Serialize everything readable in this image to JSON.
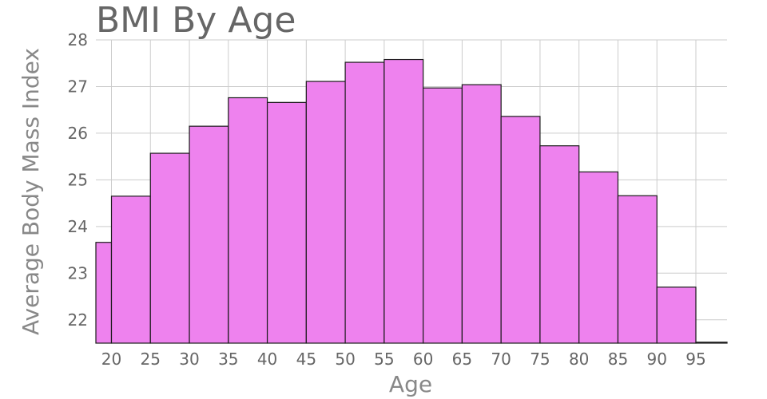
{
  "chart_data": {
    "type": "bar",
    "title": "BMI By Age",
    "xlabel": "Age",
    "ylabel": "Average Body Mass Index",
    "bin_width": 5,
    "bins": [
      {
        "start": 18,
        "end": 20,
        "value": 23.66
      },
      {
        "start": 20,
        "end": 25,
        "value": 24.65
      },
      {
        "start": 25,
        "end": 30,
        "value": 25.57
      },
      {
        "start": 30,
        "end": 35,
        "value": 26.15
      },
      {
        "start": 35,
        "end": 40,
        "value": 26.76
      },
      {
        "start": 40,
        "end": 45,
        "value": 26.66
      },
      {
        "start": 45,
        "end": 50,
        "value": 27.11
      },
      {
        "start": 50,
        "end": 55,
        "value": 27.52
      },
      {
        "start": 55,
        "end": 60,
        "value": 27.58
      },
      {
        "start": 60,
        "end": 65,
        "value": 26.97
      },
      {
        "start": 65,
        "end": 70,
        "value": 27.04
      },
      {
        "start": 70,
        "end": 75,
        "value": 26.36
      },
      {
        "start": 75,
        "end": 80,
        "value": 25.73
      },
      {
        "start": 80,
        "end": 85,
        "value": 25.17
      },
      {
        "start": 85,
        "end": 90,
        "value": 24.66
      },
      {
        "start": 90,
        "end": 95,
        "value": 22.7
      },
      {
        "start": 95,
        "end": 99,
        "value": 21.52
      }
    ],
    "xlim": [
      18,
      99
    ],
    "ylim": [
      21.5,
      28
    ],
    "x_ticks": [
      20,
      25,
      30,
      35,
      40,
      45,
      50,
      55,
      60,
      65,
      70,
      75,
      80,
      85,
      90,
      95
    ],
    "y_ticks": [
      22,
      23,
      24,
      25,
      26,
      27,
      28
    ],
    "grid": true,
    "bar_color": "#ee82ee",
    "edge_color": "#1a1a1a",
    "grid_color": "#cccccc"
  }
}
